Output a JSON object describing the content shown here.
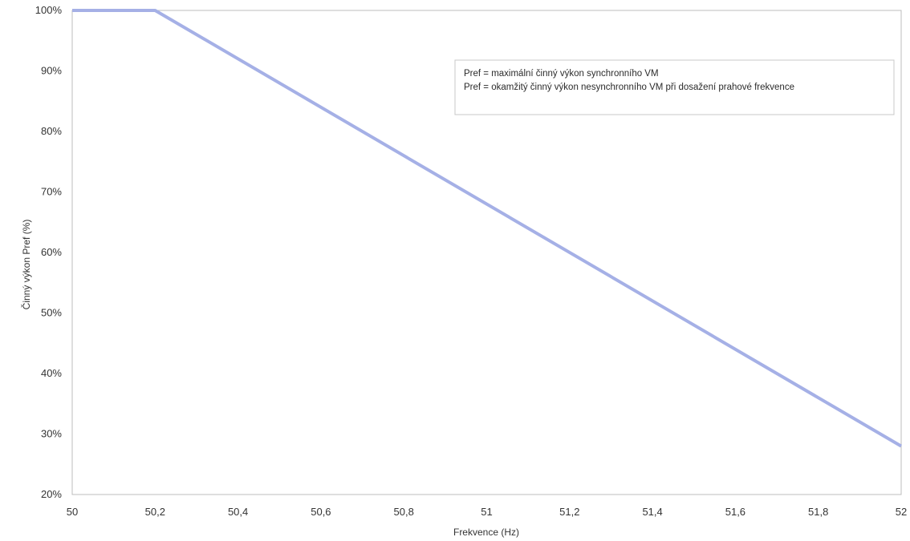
{
  "chart_data": {
    "type": "line",
    "title": "",
    "xlabel": "Frekvence (Hz)",
    "ylabel": "Činný výkon Pref (%)",
    "x_ticks": [
      "50",
      "50,2",
      "50,4",
      "50,6",
      "50,8",
      "51",
      "51,2",
      "51,4",
      "51,6",
      "51,8",
      "52"
    ],
    "y_ticks": [
      "20%",
      "30%",
      "40%",
      "50%",
      "60%",
      "70%",
      "80%",
      "90%",
      "100%"
    ],
    "xlim": [
      50,
      52
    ],
    "ylim": [
      20,
      100
    ],
    "grid": false,
    "series": [
      {
        "x": [
          50,
          50.2,
          52
        ],
        "y": [
          100,
          100,
          28
        ],
        "color": "#a5b0e6"
      }
    ],
    "annotations": [
      "Pref = maximální činný výkon synchronního VM",
      "Pref = okamžitý činný výkon nesynchronního VM při dosažení prahové frekvence"
    ]
  }
}
